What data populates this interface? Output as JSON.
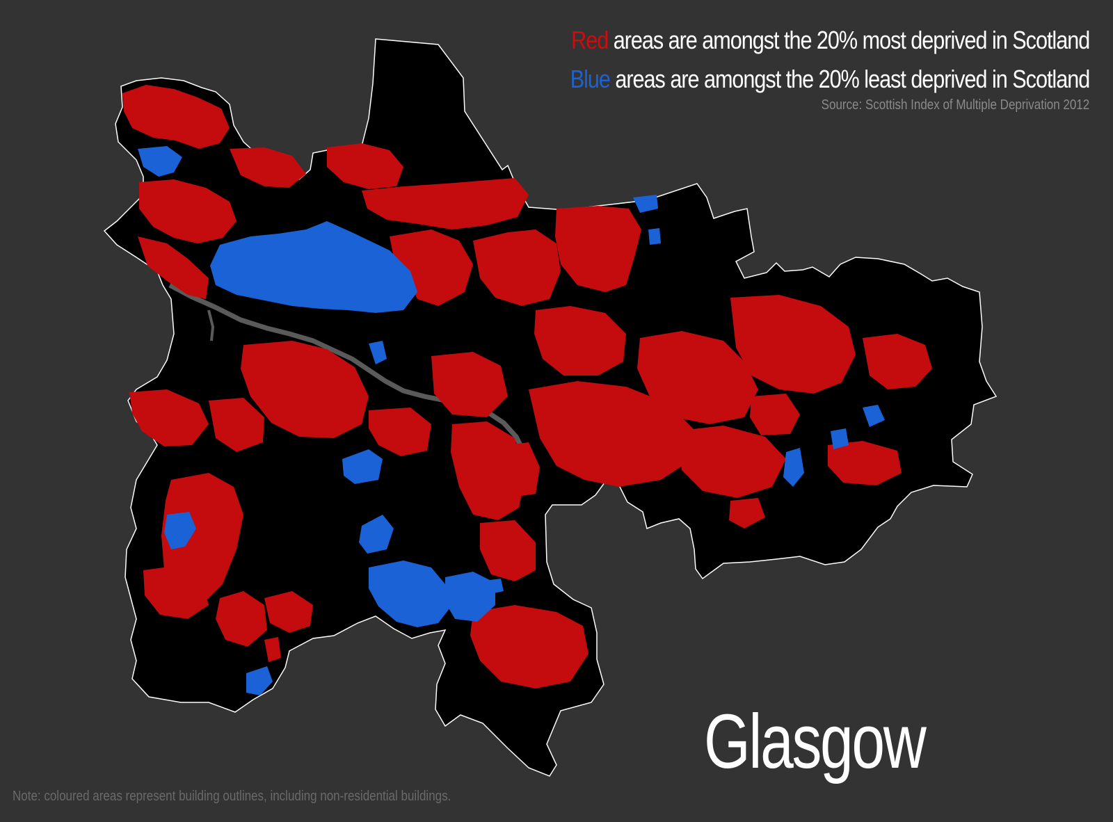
{
  "map": {
    "city": "Glasgow",
    "legend": {
      "red": {
        "key": "Red",
        "text": " areas are amongst the 20% most deprived in Scotland",
        "color": "#cc0c0f"
      },
      "blue": {
        "key": "Blue",
        "text": " areas are amongst the 20% least deprived in Scotland",
        "color": "#1a62d6"
      }
    },
    "source": "Source: Scottish Index of Multiple Deprivation 2012",
    "note": "Note: coloured areas represent building outlines, including non-residential buildings.",
    "colors": {
      "background": "#333333",
      "city_fill": "#000000",
      "boundary": "#ffffff",
      "river": "#555555"
    }
  }
}
